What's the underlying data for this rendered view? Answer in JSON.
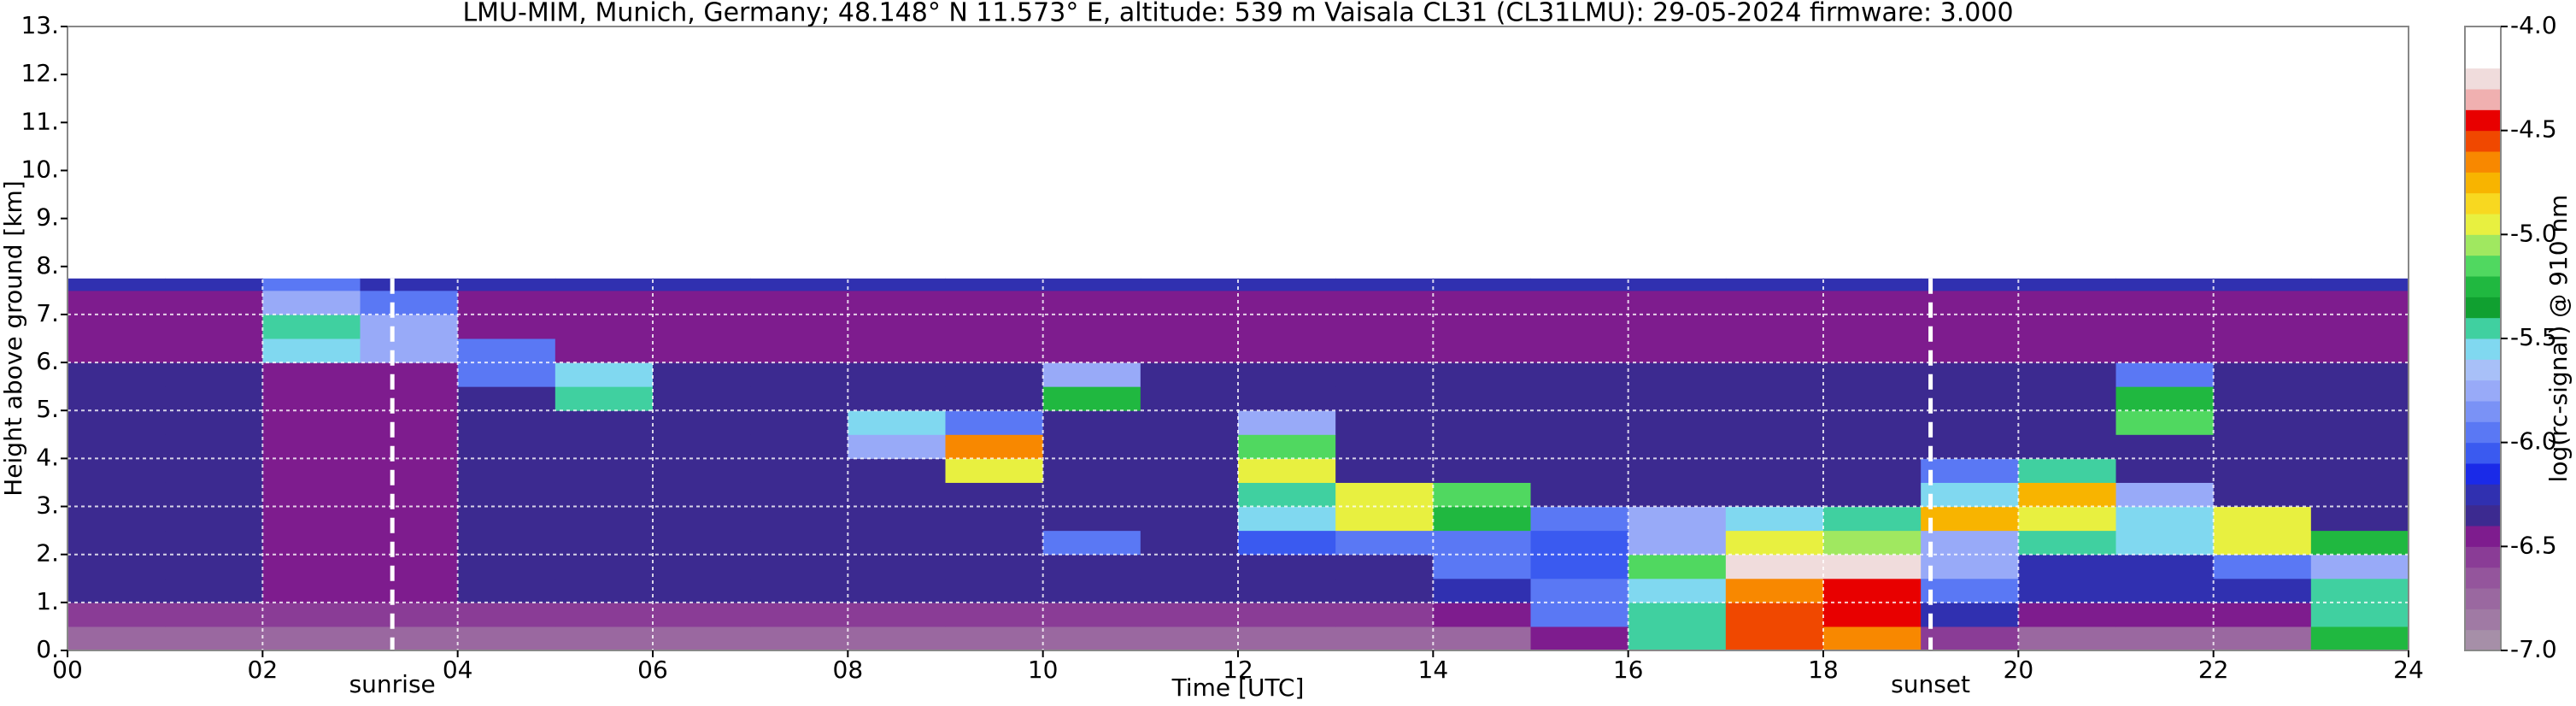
{
  "chart_data": {
    "type": "heatmap",
    "title": "LMU-MIM, Munich, Germany; 48.148° N 11.573° E, altitude: 539 m    Vaisala CL31 (CL31LMU): 29-05-2024    firmware: 3.000",
    "xlabel": "Time [UTC]",
    "ylabel": "Height above ground [km]",
    "xlim": [
      0,
      24
    ],
    "ylim": [
      0,
      13
    ],
    "xticks": [
      {
        "value": 0,
        "label": "00"
      },
      {
        "value": 2,
        "label": "02"
      },
      {
        "value": 4,
        "label": "04"
      },
      {
        "value": 6,
        "label": "06"
      },
      {
        "value": 8,
        "label": "08"
      },
      10,
      12,
      14,
      16,
      18,
      20,
      22,
      24
    ],
    "yticks": [
      {
        "value": 0,
        "label": "0."
      },
      {
        "value": 1,
        "label": "1."
      },
      {
        "value": 2,
        "label": "2."
      },
      {
        "value": 3,
        "label": "3."
      },
      {
        "value": 4,
        "label": "4."
      },
      {
        "value": 5,
        "label": "5."
      },
      {
        "value": 6,
        "label": "6."
      },
      {
        "value": 7,
        "label": "7."
      },
      {
        "value": 8,
        "label": "8."
      },
      {
        "value": 9,
        "label": "9."
      },
      {
        "value": 10,
        "label": "10."
      },
      {
        "value": 11,
        "label": "11."
      },
      {
        "value": 12,
        "label": "12."
      },
      {
        "value": 13,
        "label": "13."
      }
    ],
    "grid": true,
    "xbins": [
      0,
      1,
      2,
      3,
      4,
      5,
      6,
      7,
      8,
      9,
      10,
      11,
      12,
      13,
      14,
      15,
      16,
      17,
      18,
      19,
      20,
      21,
      22,
      23,
      24
    ],
    "ybins": [
      0,
      0.5,
      1,
      1.5,
      2,
      2.5,
      3,
      3.5,
      4,
      4.5,
      5,
      5.5,
      6,
      6.5,
      7,
      7.5,
      7.75
    ],
    "z": [
      [
        -6.7,
        -6.7,
        -6.7,
        -6.7,
        -6.7,
        -6.7,
        -6.7,
        -6.7,
        -6.7,
        -6.7,
        -6.7,
        -6.7,
        -6.7,
        -6.7,
        -6.7,
        -6.4,
        -5.5,
        -4.6,
        -4.7,
        -6.6,
        -6.7,
        -6.7,
        -6.7,
        -5.3
      ],
      [
        -6.55,
        -6.55,
        -6.6,
        -6.6,
        -6.55,
        -6.55,
        -6.55,
        -6.55,
        -6.55,
        -6.55,
        -6.55,
        -6.55,
        -6.55,
        -6.55,
        -6.5,
        -5.9,
        -5.4,
        -4.6,
        -4.5,
        -6.3,
        -6.5,
        -6.5,
        -6.4,
        -5.4
      ],
      [
        -6.35,
        -6.35,
        -6.5,
        -6.5,
        -6.35,
        -6.35,
        -6.35,
        -6.35,
        -6.35,
        -6.35,
        -6.35,
        -6.35,
        -6.35,
        -6.35,
        -6.3,
        -6.0,
        -5.6,
        -4.7,
        -4.4,
        -6.0,
        -6.3,
        -6.3,
        -6.2,
        -5.5
      ],
      [
        -6.35,
        -6.35,
        -6.5,
        -6.5,
        -6.35,
        -6.35,
        -6.35,
        -6.35,
        -6.35,
        -6.35,
        -6.35,
        -6.35,
        -6.35,
        -6.35,
        -5.9,
        -6.1,
        -5.2,
        -4.3,
        -4.3,
        -5.8,
        -6.2,
        -6.2,
        -6.0,
        -5.7
      ],
      [
        -6.35,
        -6.35,
        -6.5,
        -6.5,
        -6.35,
        -6.35,
        -6.35,
        -6.35,
        -6.35,
        -6.35,
        -5.9,
        -6.35,
        -6.1,
        -6.0,
        -5.9,
        -6.1,
        -5.7,
        -4.9,
        -5.1,
        -5.7,
        -5.5,
        -5.6,
        -5.0,
        -5.3
      ],
      [
        -6.35,
        -6.35,
        -6.5,
        -6.5,
        -6.35,
        -6.35,
        -6.35,
        -6.35,
        -6.35,
        -6.35,
        -6.35,
        -6.35,
        -5.6,
        -5.0,
        -5.3,
        -5.9,
        -5.8,
        -5.6,
        -5.4,
        -4.8,
        -5.0,
        -5.6,
        -4.9,
        -6.35
      ],
      [
        -6.35,
        -6.35,
        -6.5,
        -6.5,
        -6.35,
        -6.35,
        -6.35,
        -6.35,
        -6.35,
        -6.35,
        -6.35,
        -6.35,
        -5.5,
        -4.9,
        -5.2,
        -6.35,
        -6.35,
        -6.35,
        -6.35,
        -5.6,
        -4.8,
        -5.8,
        -6.35,
        -6.35
      ],
      [
        -6.35,
        -6.35,
        -6.5,
        -6.5,
        -6.35,
        -6.35,
        -6.35,
        -6.35,
        -6.35,
        -5.0,
        -6.35,
        -6.35,
        -5.0,
        -6.35,
        -6.35,
        -6.35,
        -6.35,
        -6.35,
        -6.35,
        -5.9,
        -5.5,
        -6.35,
        -6.35,
        -6.35
      ],
      [
        -6.35,
        -6.35,
        -6.5,
        -6.5,
        -6.35,
        -6.35,
        -6.35,
        -6.35,
        -5.8,
        -4.7,
        -6.35,
        -6.35,
        -5.2,
        -6.35,
        -6.35,
        -6.35,
        -6.35,
        -6.35,
        -6.35,
        -6.35,
        -6.35,
        -6.35,
        -6.35,
        -6.35
      ],
      [
        -6.35,
        -6.35,
        -6.5,
        -6.5,
        -6.35,
        -6.35,
        -6.35,
        -6.35,
        -5.6,
        -5.9,
        -6.35,
        -6.35,
        -5.7,
        -6.35,
        -6.35,
        -6.35,
        -6.35,
        -6.35,
        -6.35,
        -6.35,
        -6.35,
        -5.2,
        -6.35,
        -6.35
      ],
      [
        -6.35,
        -6.35,
        -6.5,
        -6.5,
        -6.35,
        -5.5,
        -6.35,
        -6.35,
        -6.35,
        -6.35,
        -5.3,
        -6.35,
        -6.35,
        -6.35,
        -6.35,
        -6.35,
        -6.35,
        -6.35,
        -6.35,
        -6.35,
        -6.35,
        -5.3,
        -6.35,
        -6.35
      ],
      [
        -6.35,
        -6.35,
        -6.5,
        -6.5,
        -6.0,
        -5.6,
        -6.35,
        -6.35,
        -6.35,
        -6.35,
        -5.8,
        -6.35,
        -6.35,
        -6.35,
        -6.35,
        -6.35,
        -6.35,
        -6.35,
        -6.35,
        -6.35,
        -6.35,
        -5.9,
        -6.35,
        -6.35
      ],
      [
        -6.4,
        -6.4,
        -5.6,
        -5.8,
        -6.0,
        -6.4,
        -6.4,
        -6.4,
        -6.4,
        -6.4,
        -6.4,
        -6.4,
        -6.4,
        -6.4,
        -6.4,
        -6.4,
        -6.4,
        -6.4,
        -6.4,
        -6.4,
        -6.4,
        -6.4,
        -6.4,
        -6.4
      ],
      [
        -6.4,
        -6.4,
        -5.5,
        -5.7,
        -6.4,
        -6.4,
        -6.4,
        -6.4,
        -6.4,
        -6.4,
        -6.4,
        -6.4,
        -6.4,
        -6.4,
        -6.4,
        -6.4,
        -6.4,
        -6.4,
        -6.4,
        -6.4,
        -6.4,
        -6.4,
        -6.4,
        -6.4
      ],
      [
        -6.4,
        -6.4,
        -5.7,
        -6.0,
        -6.4,
        -6.4,
        -6.4,
        -6.4,
        -6.4,
        -6.4,
        -6.4,
        -6.4,
        -6.4,
        -6.4,
        -6.4,
        -6.4,
        -6.4,
        -6.4,
        -6.4,
        -6.4,
        -6.4,
        -6.4,
        -6.4,
        -6.4
      ],
      [
        -6.2,
        -6.2,
        -5.9,
        -6.2,
        -6.2,
        -6.2,
        -6.2,
        -6.2,
        -6.2,
        -6.2,
        -6.2,
        -6.2,
        -6.2,
        -6.2,
        -6.2,
        -6.2,
        -6.2,
        -6.2,
        -6.2,
        -6.2,
        -6.2,
        -6.2,
        -6.2,
        -6.2
      ]
    ],
    "clim": [
      -7,
      -4
    ],
    "colormap": [
      "#a68fa8",
      "#a07aa4",
      "#9a68a0",
      "#94559c",
      "#8a3c96",
      "#7e1c8e",
      "#3c2a90",
      "#3030b0",
      "#1a2ae8",
      "#3a5af0",
      "#5a78f4",
      "#7a92f6",
      "#98aaf8",
      "#a8c0f8",
      "#80d8f0",
      "#40d0a0",
      "#10a030",
      "#20b840",
      "#50d860",
      "#a0e860",
      "#e8f040",
      "#f8d820",
      "#f8b400",
      "#f88800",
      "#f04800",
      "#e80000",
      "#f0b0b0",
      "#f0dcdc",
      "#ffffff",
      "#ffffff"
    ],
    "colorbar_label": "log(rc-signal) @ 910 nm",
    "colorbar_ticks": [
      {
        "value": -7,
        "label": "-7.0"
      },
      -6.5,
      {
        "value": -6,
        "label": "-6.0"
      },
      -5.5,
      {
        "value": -5,
        "label": "-5.0"
      },
      -4.5,
      {
        "value": -4,
        "label": "-4.0"
      }
    ],
    "annotations": [
      {
        "text": "sunrise",
        "x": 3.33
      },
      {
        "text": "sunset",
        "x": 19.1
      }
    ]
  }
}
